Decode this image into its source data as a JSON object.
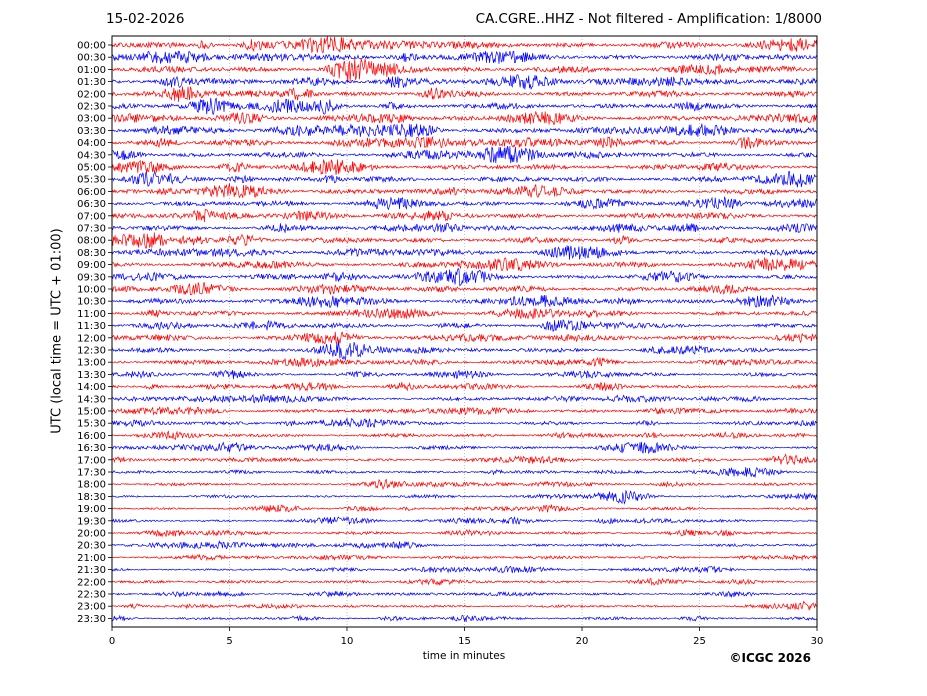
{
  "header": {
    "date": "15-02-2026",
    "title": "CA.CGRE..HHZ - Not filtered - Amplification: 1/8000"
  },
  "footer": {
    "copyright": "©ICGC 2026"
  },
  "colors": {
    "odd_row": "#ff0000",
    "even_row": "#0000ff",
    "grid": "#999999",
    "frame": "#000000"
  },
  "chart_data": {
    "type": "line",
    "subtype": "helicorder",
    "xlabel": "time in minutes",
    "ylabel": "UTC (local time = UTC + 01:00)",
    "xlim": [
      0,
      30
    ],
    "x_ticks": [
      0,
      5,
      10,
      15,
      20,
      25,
      30
    ],
    "x_tick_labels": [
      "0",
      "5",
      "10",
      "15",
      "20",
      "25",
      "30"
    ],
    "grid": "vertical dotted at each x tick",
    "row_labels": [
      "00:00",
      "00:30",
      "01:00",
      "01:30",
      "02:00",
      "02:30",
      "03:00",
      "03:30",
      "04:00",
      "04:30",
      "05:00",
      "05:30",
      "06:00",
      "06:30",
      "07:00",
      "07:30",
      "08:00",
      "08:30",
      "09:00",
      "09:30",
      "10:00",
      "10:30",
      "11:00",
      "11:30",
      "12:00",
      "12:30",
      "13:00",
      "13:30",
      "14:00",
      "14:30",
      "15:00",
      "15:30",
      "16:00",
      "16:30",
      "17:00",
      "17:30",
      "18:00",
      "18:30",
      "19:00",
      "19:30",
      "20:00",
      "20:30",
      "21:00",
      "21:30",
      "22:00",
      "22:30",
      "23:00",
      "23:30"
    ],
    "row_color_cycle": [
      "red",
      "blue"
    ],
    "relative_noise_level": [
      1.0,
      1.0,
      1.0,
      1.0,
      0.95,
      0.95,
      0.95,
      0.95,
      0.9,
      0.85,
      0.85,
      0.85,
      0.85,
      0.85,
      0.8,
      0.8,
      0.85,
      0.8,
      0.8,
      0.85,
      0.85,
      0.8,
      0.75,
      0.7,
      0.7,
      0.7,
      0.65,
      0.6,
      0.6,
      0.6,
      0.6,
      0.55,
      0.55,
      0.55,
      0.5,
      0.45,
      0.45,
      0.45,
      0.45,
      0.45,
      0.45,
      0.45,
      0.4,
      0.4,
      0.4,
      0.4,
      0.4,
      0.45
    ]
  }
}
